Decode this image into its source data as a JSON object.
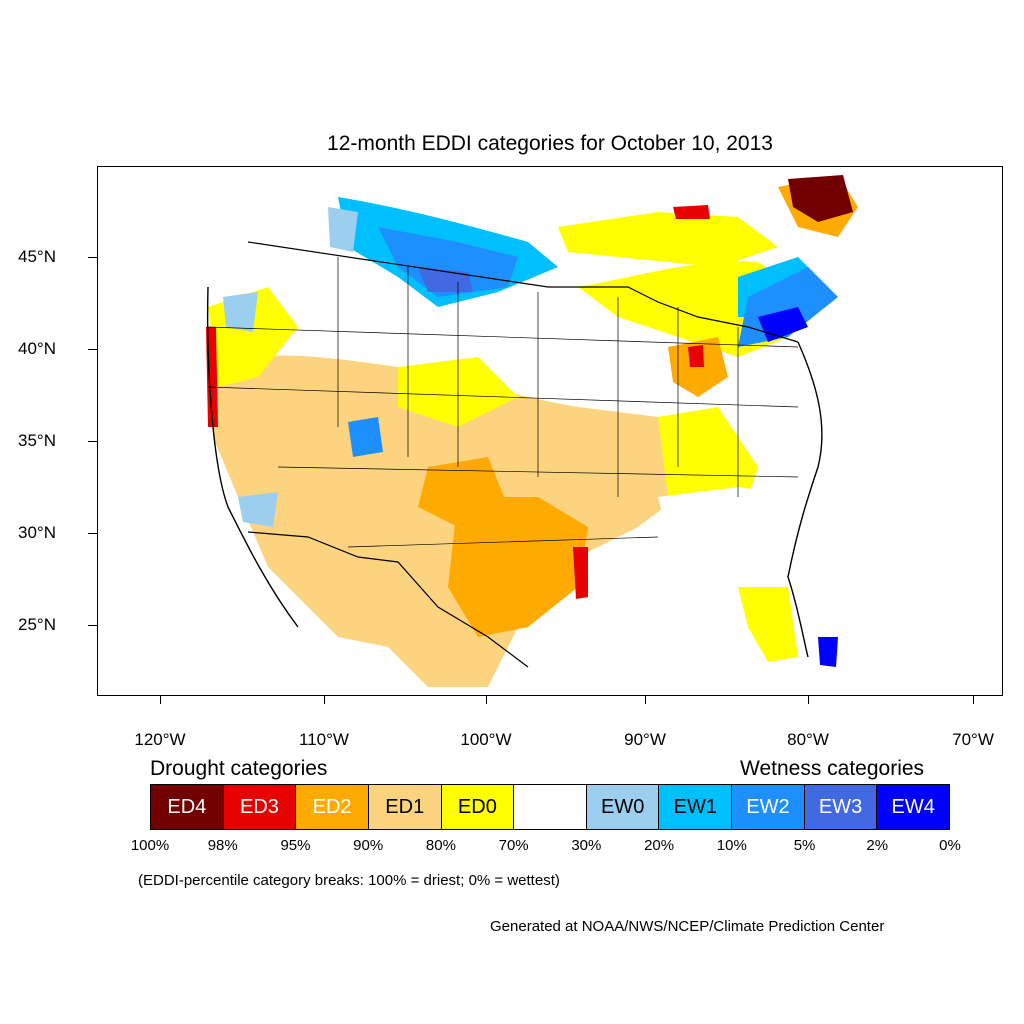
{
  "title": "12-month EDDI categories for October 10, 2013",
  "axes": {
    "lat_labels": [
      "45°N",
      "40°N",
      "35°N",
      "30°N",
      "25°N"
    ],
    "lon_labels": [
      "120°W",
      "110°W",
      "100°W",
      "90°W",
      "80°W",
      "70°W"
    ]
  },
  "legend": {
    "drought_heading": "Drought categories",
    "wetness_heading": "Wetness categories",
    "categories": [
      {
        "label": "ED4",
        "color": "#730000",
        "text_color": "#ffffff"
      },
      {
        "label": "ED3",
        "color": "#e60000",
        "text_color": "#ffffff"
      },
      {
        "label": "ED2",
        "color": "#ffaa00",
        "text_color": "#ffffff"
      },
      {
        "label": "ED1",
        "color": "#fcd37f",
        "text_color": "#000000"
      },
      {
        "label": "ED0",
        "color": "#ffff00",
        "text_color": "#000000"
      },
      {
        "label": "",
        "color": "#ffffff",
        "text_color": "#000000"
      },
      {
        "label": "EW0",
        "color": "#9ccfef",
        "text_color": "#000000"
      },
      {
        "label": "EW1",
        "color": "#00bfff",
        "text_color": "#000000"
      },
      {
        "label": "EW2",
        "color": "#1e8fff",
        "text_color": "#ffffff"
      },
      {
        "label": "EW3",
        "color": "#4169e1",
        "text_color": "#ffffff"
      },
      {
        "label": "EW4",
        "color": "#0000ff",
        "text_color": "#ffffff"
      }
    ],
    "breaks": [
      "100%",
      "98%",
      "95%",
      "90%",
      "80%",
      "70%",
      "30%",
      "20%",
      "10%",
      "5%",
      "2%",
      "0%"
    ]
  },
  "note": "(EDDI-percentile category breaks: 100% = driest; 0% = wettest)",
  "credit": "Generated at NOAA/NWS/NCEP/Climate Prediction Center"
}
